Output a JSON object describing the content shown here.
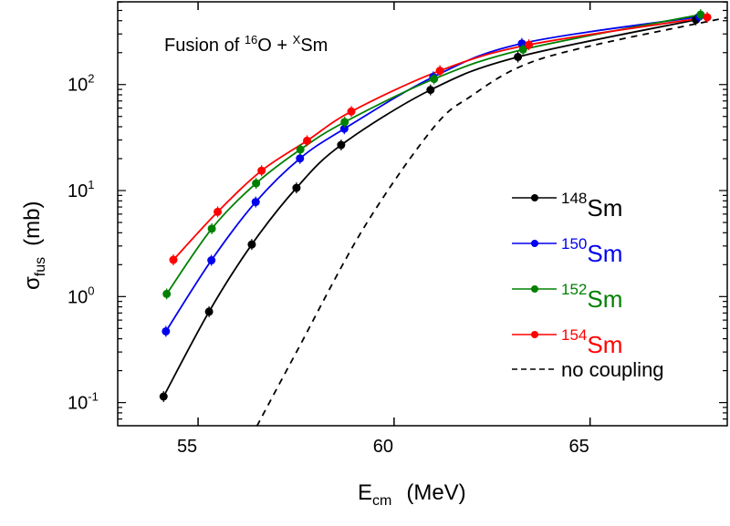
{
  "chart_data": {
    "type": "line",
    "title": {
      "prefix": "Fusion of ",
      "sup1": "16",
      "mid": "O + ",
      "sup2": "X",
      "suffix": "Sm"
    },
    "xlabel": {
      "main": "E",
      "sub": "cm",
      "unit": "(MeV)"
    },
    "ylabel": {
      "main": "σ",
      "sub": "fus",
      "unit": "(mb)"
    },
    "xlim": [
      52.95,
      68.5
    ],
    "ylim": [
      0.0605,
      603
    ],
    "yscale": "log",
    "xticks": [
      55,
      60,
      65
    ],
    "yticks": [
      {
        "base": "10",
        "exp": "-1",
        "value": 0.1
      },
      {
        "base": "10",
        "exp": "0",
        "value": 1
      },
      {
        "base": "10",
        "exp": "1",
        "value": 10
      },
      {
        "base": "10",
        "exp": "2",
        "value": 100
      }
    ],
    "grid": false,
    "legend_placement": "right",
    "series": [
      {
        "name": "148Sm",
        "mass": "148",
        "element": "Sm",
        "color": "#000000",
        "style": "solid-with-points",
        "x": [
          54.12,
          55.28,
          56.37,
          57.51,
          58.65,
          60.93,
          63.16,
          67.7
        ],
        "y": [
          0.114,
          0.72,
          3.1,
          10.6,
          26.9,
          89,
          182,
          408
        ]
      },
      {
        "name": "150Sm",
        "mass": "150",
        "element": "Sm",
        "color": "#0000ee",
        "style": "solid-with-points",
        "x": [
          54.18,
          55.34,
          56.47,
          57.6,
          58.73,
          61.0,
          63.26,
          67.78
        ],
        "y": [
          0.47,
          2.2,
          7.8,
          20.1,
          38.3,
          118,
          244,
          436
        ]
      },
      {
        "name": "152Sm",
        "mass": "152",
        "element": "Sm",
        "color": "#008000",
        "style": "solid-with-points",
        "x": [
          54.2,
          55.35,
          56.48,
          57.61,
          58.74,
          61.02,
          63.29,
          67.82
        ],
        "y": [
          1.06,
          4.37,
          11.7,
          24.4,
          44.3,
          113,
          214,
          457
        ]
      },
      {
        "name": "154Sm",
        "mass": "154",
        "element": "Sm",
        "color": "#ff0000",
        "style": "solid-with-points",
        "x": [
          54.37,
          55.5,
          56.62,
          57.78,
          58.91,
          61.17,
          63.44,
          67.99
        ],
        "y": [
          2.22,
          6.3,
          15.4,
          29.5,
          55.7,
          135,
          237,
          431
        ]
      },
      {
        "name": "no coupling",
        "color": "#000000",
        "style": "dashed",
        "x": [
          56.5,
          57.5,
          59.22,
          61.0,
          61.97,
          63.28,
          65.07,
          68.48
        ],
        "y": [
          0.06,
          0.295,
          4.4,
          39,
          78,
          151,
          234,
          427
        ]
      }
    ]
  }
}
